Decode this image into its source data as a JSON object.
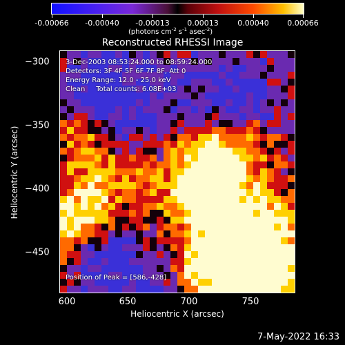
{
  "colorbar": {
    "ticks": [
      "-0.00066",
      "-0.00040",
      "-0.00013",
      "0.00013",
      "0.00040",
      "0.00066"
    ],
    "units": {
      "pre": "(photons cm",
      "e1": "-2",
      "mid1": " s",
      "e2": "-1",
      "mid2": " asec",
      "e3": "-2",
      "post": ")"
    }
  },
  "title": "Reconstructed RHESSI Image",
  "annotations": {
    "time": "3-Dec-2003 08:53:24.000 to 08:59:24.000",
    "detectors": "Detectors: 3F 4F 5F 6F 7F 8F, Att 0",
    "energy": "Energy Range: 12.0 - 25.0 keV",
    "clean": "Clean     Total counts: 6.08E+03",
    "peak": "Position of Peak = [586,-428]"
  },
  "y_axis": {
    "label": "Heliocentric  Y (arcsec)",
    "ticks": [
      "−300",
      "−350",
      "−400",
      "−450"
    ]
  },
  "x_axis": {
    "label": "Heliocentric X (arcsec)",
    "ticks": [
      "600",
      "650",
      "700",
      "750"
    ]
  },
  "timestamp": "7-May-2022 16:33",
  "colors": {
    "blue": "#3a30d8",
    "purple": "#6a2ab0",
    "dark": "#14000a",
    "red": "#d01010",
    "orange": "#ff6a00",
    "yellow": "#ffd000",
    "white": "#fffcd0"
  }
}
